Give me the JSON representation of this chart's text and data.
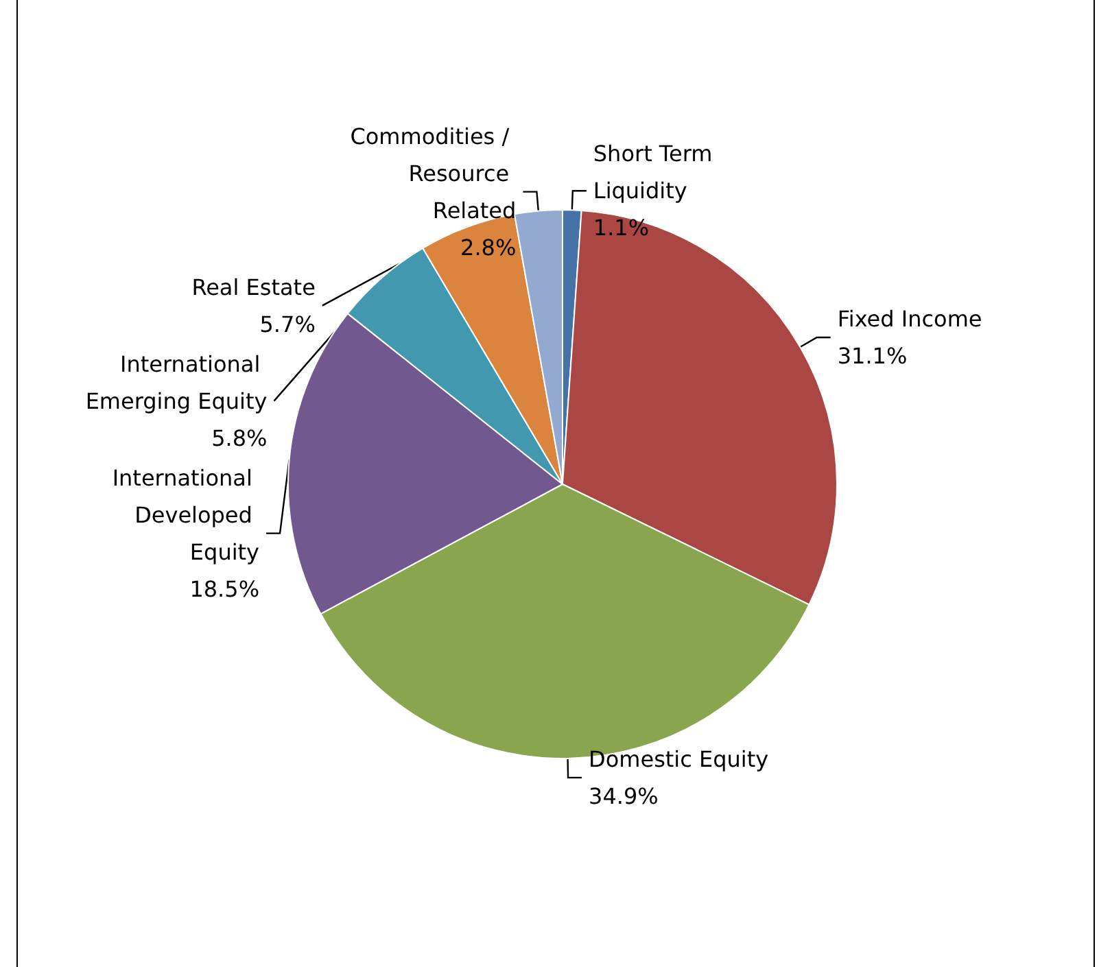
{
  "chart_data": {
    "type": "pie",
    "categories": [
      "Short Term Liquidity",
      "Fixed Income",
      "Domestic Equity",
      "International Developed Equity",
      "International Emerging Equity",
      "Real Estate",
      "Commodities / Resource Related"
    ],
    "values": [
      1.1,
      31.1,
      34.9,
      18.5,
      5.8,
      5.7,
      2.8
    ],
    "value_labels": [
      "1.1%",
      "31.1%",
      "34.9%",
      "18.5%",
      "5.8%",
      "5.7%",
      "2.8%"
    ],
    "colors": [
      "#4572a7",
      "#aa4643",
      "#89a54e",
      "#71588f",
      "#4198af",
      "#db843d",
      "#93a9cf"
    ],
    "legend": false
  }
}
